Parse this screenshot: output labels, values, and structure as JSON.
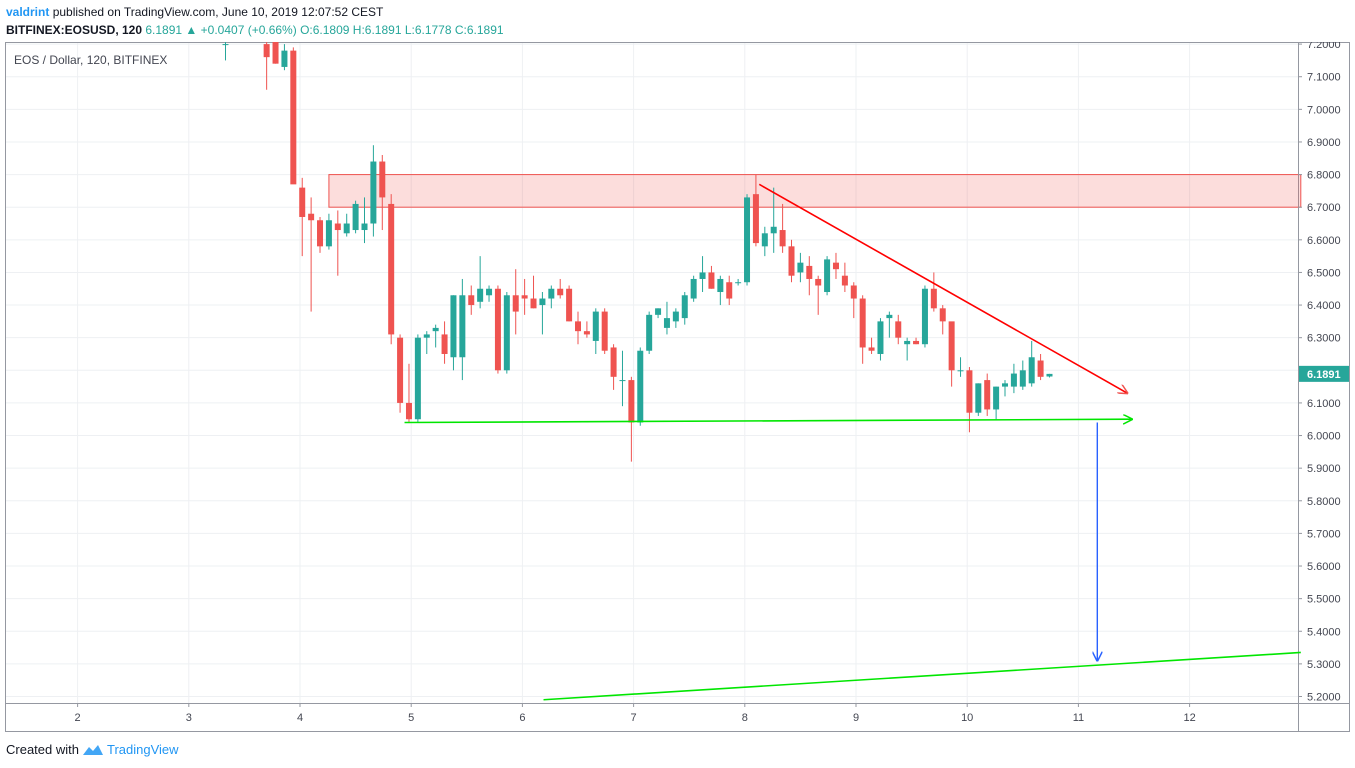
{
  "header": {
    "author": "valdrint",
    "published_text": "published on TradingView.com, June 10, 2019 12:07:52 CEST",
    "symbol": "BITFINEX:EOSUSD, 120",
    "last_price": "6.1891",
    "change": "+0.0407 (+0.66%)",
    "ohlc": "O:6.1809 H:6.1891 L:6.1778 C:6.1891"
  },
  "legend": "EOS / Dollar, 120, BITFINEX",
  "footer": {
    "created_with": "Created with",
    "brand": "TradingView"
  },
  "colors": {
    "up": "#26a69a",
    "down": "#ef5350",
    "resistance_zone": "#ef5350",
    "support_line": "#00e600",
    "target_arrow": "#2962ff",
    "price_label_bg": "#26a69a"
  },
  "chart_data": {
    "type": "candlestick",
    "title": "EOS / Dollar, 120, BITFINEX",
    "x_label_ticks": [
      "2",
      "3",
      "4",
      "5",
      "6",
      "7",
      "8",
      "9",
      "10",
      "11",
      "12"
    ],
    "y_ticks": [
      "5.2000",
      "5.3000",
      "5.4000",
      "5.5000",
      "5.6000",
      "5.7000",
      "5.8000",
      "5.9000",
      "6.0000",
      "6.1000",
      "6.2000",
      "6.3000",
      "6.4000",
      "6.5000",
      "6.6000",
      "6.7000",
      "6.8000",
      "6.9000",
      "7.0000",
      "7.1000",
      "7.2000"
    ],
    "ylim": [
      5.19,
      7.22
    ],
    "xlim": [
      1.5,
      13.0
    ],
    "last_price_label": "6.1891",
    "grid": true,
    "candles": [
      [
        3.33,
        7.2,
        7.22,
        7.15,
        7.2
      ],
      [
        3.7,
        7.2,
        7.25,
        7.06,
        7.16
      ],
      [
        3.78,
        7.21,
        7.22,
        7.14,
        7.14
      ],
      [
        3.86,
        7.13,
        7.2,
        7.12,
        7.18
      ],
      [
        3.94,
        7.18,
        7.19,
        6.78,
        6.77
      ],
      [
        4.02,
        6.76,
        6.79,
        6.55,
        6.67
      ],
      [
        4.1,
        6.68,
        6.73,
        6.38,
        6.66
      ],
      [
        4.18,
        6.66,
        6.67,
        6.56,
        6.58
      ],
      [
        4.26,
        6.58,
        6.68,
        6.57,
        6.66
      ],
      [
        4.34,
        6.65,
        6.69,
        6.49,
        6.63
      ],
      [
        4.42,
        6.62,
        6.68,
        6.61,
        6.65
      ],
      [
        4.5,
        6.63,
        6.72,
        6.62,
        6.71
      ],
      [
        4.58,
        6.63,
        6.73,
        6.59,
        6.65
      ],
      [
        4.66,
        6.65,
        6.89,
        6.61,
        6.84
      ],
      [
        4.74,
        6.84,
        6.86,
        6.63,
        6.73
      ],
      [
        4.82,
        6.71,
        6.74,
        6.28,
        6.31
      ],
      [
        4.9,
        6.3,
        6.31,
        6.07,
        6.1
      ],
      [
        4.98,
        6.1,
        6.22,
        6.04,
        6.05
      ],
      [
        5.06,
        6.05,
        6.31,
        6.04,
        6.3
      ],
      [
        5.14,
        6.3,
        6.32,
        6.25,
        6.31
      ],
      [
        5.22,
        6.32,
        6.34,
        6.27,
        6.33
      ],
      [
        5.3,
        6.31,
        6.35,
        6.22,
        6.25
      ],
      [
        5.38,
        6.24,
        6.43,
        6.2,
        6.43
      ],
      [
        5.46,
        6.24,
        6.48,
        6.17,
        6.43
      ],
      [
        5.54,
        6.43,
        6.46,
        6.37,
        6.4
      ],
      [
        5.62,
        6.41,
        6.55,
        6.39,
        6.45
      ],
      [
        5.7,
        6.43,
        6.46,
        6.41,
        6.45
      ],
      [
        5.78,
        6.45,
        6.46,
        6.19,
        6.2
      ],
      [
        5.86,
        6.2,
        6.44,
        6.19,
        6.43
      ],
      [
        5.94,
        6.43,
        6.51,
        6.31,
        6.38
      ],
      [
        6.02,
        6.43,
        6.48,
        6.37,
        6.42
      ],
      [
        6.1,
        6.42,
        6.49,
        6.39,
        6.39
      ],
      [
        6.18,
        6.4,
        6.44,
        6.31,
        6.42
      ],
      [
        6.26,
        6.42,
        6.46,
        6.39,
        6.45
      ],
      [
        6.34,
        6.45,
        6.48,
        6.42,
        6.43
      ],
      [
        6.42,
        6.45,
        6.46,
        6.35,
        6.35
      ],
      [
        6.5,
        6.35,
        6.38,
        6.28,
        6.32
      ],
      [
        6.58,
        6.32,
        6.35,
        6.3,
        6.31
      ],
      [
        6.66,
        6.29,
        6.39,
        6.25,
        6.38
      ],
      [
        6.74,
        6.38,
        6.39,
        6.25,
        6.26
      ],
      [
        6.82,
        6.27,
        6.28,
        6.14,
        6.18
      ],
      [
        6.9,
        6.17,
        6.26,
        6.09,
        6.17
      ],
      [
        6.98,
        6.17,
        6.18,
        5.92,
        6.04
      ],
      [
        7.06,
        6.04,
        6.27,
        6.03,
        6.26
      ],
      [
        7.14,
        6.26,
        6.38,
        6.25,
        6.37
      ],
      [
        7.22,
        6.37,
        6.39,
        6.36,
        6.39
      ],
      [
        7.3,
        6.33,
        6.41,
        6.31,
        6.36
      ],
      [
        7.38,
        6.35,
        6.39,
        6.33,
        6.38
      ],
      [
        7.46,
        6.36,
        6.44,
        6.34,
        6.43
      ],
      [
        7.54,
        6.42,
        6.49,
        6.41,
        6.48
      ],
      [
        7.62,
        6.48,
        6.55,
        6.44,
        6.5
      ],
      [
        7.7,
        6.5,
        6.52,
        6.45,
        6.45
      ],
      [
        7.78,
        6.44,
        6.49,
        6.4,
        6.48
      ],
      [
        7.86,
        6.47,
        6.49,
        6.4,
        6.42
      ],
      [
        7.94,
        6.47,
        6.48,
        6.46,
        6.47
      ],
      [
        8.02,
        6.47,
        6.74,
        6.46,
        6.73
      ],
      [
        8.1,
        6.74,
        6.8,
        6.58,
        6.59
      ],
      [
        8.18,
        6.58,
        6.64,
        6.55,
        6.62
      ],
      [
        8.26,
        6.62,
        6.76,
        6.56,
        6.64
      ],
      [
        8.34,
        6.63,
        6.71,
        6.56,
        6.58
      ],
      [
        8.42,
        6.58,
        6.6,
        6.47,
        6.49
      ],
      [
        8.5,
        6.5,
        6.56,
        6.47,
        6.53
      ],
      [
        8.58,
        6.52,
        6.55,
        6.43,
        6.48
      ],
      [
        8.66,
        6.48,
        6.49,
        6.37,
        6.46
      ],
      [
        8.74,
        6.44,
        6.55,
        6.43,
        6.54
      ],
      [
        8.82,
        6.53,
        6.56,
        6.48,
        6.51
      ],
      [
        8.9,
        6.49,
        6.53,
        6.44,
        6.46
      ],
      [
        8.98,
        6.46,
        6.47,
        6.36,
        6.42
      ],
      [
        9.06,
        6.42,
        6.43,
        6.22,
        6.27
      ],
      [
        9.14,
        6.27,
        6.3,
        6.25,
        6.26
      ],
      [
        9.22,
        6.25,
        6.36,
        6.23,
        6.35
      ],
      [
        9.3,
        6.36,
        6.38,
        6.3,
        6.37
      ],
      [
        9.38,
        6.35,
        6.37,
        6.28,
        6.3
      ],
      [
        9.46,
        6.28,
        6.3,
        6.23,
        6.29
      ],
      [
        9.54,
        6.29,
        6.3,
        6.28,
        6.28
      ],
      [
        9.62,
        6.28,
        6.46,
        6.27,
        6.45
      ],
      [
        9.7,
        6.45,
        6.5,
        6.38,
        6.39
      ],
      [
        9.78,
        6.39,
        6.4,
        6.31,
        6.35
      ],
      [
        9.86,
        6.35,
        6.34,
        6.15,
        6.2
      ],
      [
        9.94,
        6.2,
        6.24,
        6.18,
        6.2
      ],
      [
        10.02,
        6.2,
        6.21,
        6.01,
        6.07
      ],
      [
        10.1,
        6.07,
        6.16,
        6.06,
        6.16
      ],
      [
        10.18,
        6.17,
        6.19,
        6.06,
        6.08
      ],
      [
        10.26,
        6.08,
        6.15,
        6.05,
        6.15
      ],
      [
        10.34,
        6.15,
        6.17,
        6.12,
        6.16
      ],
      [
        10.42,
        6.15,
        6.22,
        6.13,
        6.19
      ],
      [
        10.5,
        6.15,
        6.23,
        6.14,
        6.2
      ],
      [
        10.58,
        6.16,
        6.29,
        6.15,
        6.24
      ],
      [
        10.66,
        6.23,
        6.25,
        6.17,
        6.18
      ],
      [
        10.74,
        6.181,
        6.189,
        6.178,
        6.189
      ]
    ],
    "resistance_zone": {
      "x_start": 4.26,
      "x_end": 13.0,
      "y_low": 6.7,
      "y_high": 6.8
    },
    "descending_trendline": {
      "x": [
        8.13,
        11.44
      ],
      "y": [
        6.77,
        6.13
      ]
    },
    "support_line": {
      "x": [
        4.94,
        11.48
      ],
      "y": [
        6.04,
        6.05
      ]
    },
    "lower_trendline": {
      "x": [
        6.19,
        13.0
      ],
      "y": [
        5.19,
        5.335
      ]
    },
    "target_arrow": {
      "x": 11.17,
      "y_from": 6.04,
      "y_to": 5.31
    }
  }
}
